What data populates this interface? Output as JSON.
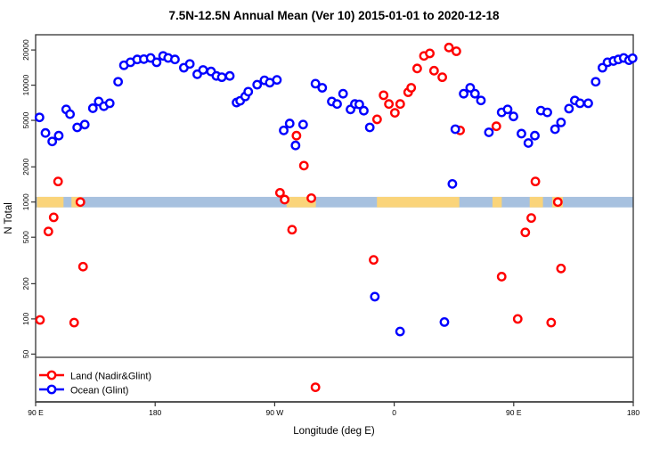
{
  "chart_data": {
    "type": "scatter",
    "title": "7.5N-12.5N Annual Mean (Ver 10)   2015-01-01 to 2020-12-18",
    "xlabel": "Longitude (deg E)",
    "ylabel": "N Total",
    "grid": false,
    "x_axis": {
      "span_deg": 450,
      "note": "longitude axis starts at 90E and wraps eastward 450 degrees",
      "ticks": [
        {
          "pos_deg": 0,
          "label": "90 E"
        },
        {
          "pos_deg": 90,
          "label": "180"
        },
        {
          "pos_deg": 180,
          "label": "90 W"
        },
        {
          "pos_deg": 270,
          "label": "0"
        },
        {
          "pos_deg": 360,
          "label": "90 E"
        },
        {
          "pos_deg": 450,
          "label": "180"
        }
      ]
    },
    "y_axis": {
      "scale": "log",
      "min": 19.5,
      "max": 27000,
      "ticks": [
        50,
        100,
        200,
        500,
        1000,
        2000,
        5000,
        10000,
        20000
      ]
    },
    "land_ocean_band": {
      "value": 1000,
      "ocean_color": "#a7c1df",
      "land_color": "#fad47a",
      "land_segments_deg": [
        [
          1,
          21
        ],
        [
          27,
          35
        ],
        [
          189,
          211
        ],
        [
          257,
          319
        ],
        [
          344,
          351
        ],
        [
          372,
          382
        ],
        [
          389,
          397
        ]
      ]
    },
    "legend": {
      "position": "bottom-left",
      "items": [
        "Land (Nadir&Glint)",
        "Ocean (Glint)"
      ]
    },
    "series": [
      {
        "name": "Land (Nadir&Glint)",
        "color": "#ff0000",
        "points": [
          [
            3.3,
            98
          ],
          [
            9.6,
            560
          ],
          [
            13.6,
            740
          ],
          [
            16.9,
            1500
          ],
          [
            29,
            93
          ],
          [
            33.7,
            1000
          ],
          [
            35.7,
            280
          ],
          [
            184,
            1200
          ],
          [
            187.5,
            1050
          ],
          [
            193.1,
            580
          ],
          [
            196.4,
            3700
          ],
          [
            202,
            2050
          ],
          [
            207.6,
            1080
          ],
          [
            210.7,
            26
          ],
          [
            254.5,
            320
          ],
          [
            257.1,
            5100
          ],
          [
            262,
            8200
          ],
          [
            266,
            6900
          ],
          [
            270.5,
            5800
          ],
          [
            274.5,
            6900
          ],
          [
            280.5,
            8700
          ],
          [
            282.8,
            9500
          ],
          [
            287.3,
            13900
          ],
          [
            292.4,
            17800
          ],
          [
            296.8,
            18700
          ],
          [
            300,
            13300
          ],
          [
            306.2,
            11700
          ],
          [
            311.2,
            21000
          ],
          [
            316.8,
            19500
          ],
          [
            319.6,
            4100
          ],
          [
            346.9,
            4450
          ],
          [
            350.9,
            230
          ],
          [
            363,
            100
          ],
          [
            368.7,
            550
          ],
          [
            373.2,
            730
          ],
          [
            376.3,
            1500
          ],
          [
            388.2,
            93
          ],
          [
            393.2,
            1000
          ],
          [
            395.6,
            270
          ]
        ]
      },
      {
        "name": "Ocean (Glint)",
        "color": "#0000ff",
        "points": [
          [
            2.9,
            5300
          ],
          [
            7.4,
            3900
          ],
          [
            12.5,
            3300
          ],
          [
            17.4,
            3700
          ],
          [
            23,
            6200
          ],
          [
            25.9,
            5650
          ],
          [
            31.3,
            4350
          ],
          [
            37,
            4600
          ],
          [
            43.1,
            6350
          ],
          [
            47.5,
            7250
          ],
          [
            51.4,
            6600
          ],
          [
            55.8,
            7000
          ],
          [
            62.1,
            10700
          ],
          [
            66.5,
            14800
          ],
          [
            71.4,
            15700
          ],
          [
            76.5,
            16600
          ],
          [
            81.5,
            16700
          ],
          [
            86.6,
            17100
          ],
          [
            91.1,
            15700
          ],
          [
            96,
            17800
          ],
          [
            99.8,
            17100
          ],
          [
            104.9,
            16600
          ],
          [
            111.6,
            14100
          ],
          [
            116.1,
            15200
          ],
          [
            121.7,
            12400
          ],
          [
            126.1,
            13500
          ],
          [
            132.1,
            13100
          ],
          [
            136.1,
            12000
          ],
          [
            140.2,
            11700
          ],
          [
            146.2,
            12000
          ],
          [
            151.3,
            7100
          ],
          [
            154,
            7350
          ],
          [
            157.8,
            8000
          ],
          [
            160.1,
            8800
          ],
          [
            166.8,
            10100
          ],
          [
            172.3,
            11000
          ],
          [
            176.3,
            10500
          ],
          [
            181.7,
            11100
          ],
          [
            186.8,
            4100
          ],
          [
            191.3,
            4700
          ],
          [
            195.7,
            3050
          ],
          [
            201.4,
            4600
          ],
          [
            210.7,
            10300
          ],
          [
            215.8,
            9500
          ],
          [
            223,
            7250
          ],
          [
            227,
            6900
          ],
          [
            231.5,
            8450
          ],
          [
            237.1,
            6200
          ],
          [
            240.4,
            6900
          ],
          [
            243.7,
            6850
          ],
          [
            247.1,
            6050
          ],
          [
            251.6,
            4350
          ],
          [
            255.4,
            155
          ],
          [
            274.4,
            78
          ],
          [
            307.8,
            94
          ],
          [
            313.8,
            1430
          ],
          [
            316,
            4200
          ],
          [
            322.3,
            8450
          ],
          [
            327.2,
            9500
          ],
          [
            330.8,
            8450
          ],
          [
            335.3,
            7400
          ],
          [
            341.3,
            3950
          ],
          [
            350.9,
            5850
          ],
          [
            355.4,
            6200
          ],
          [
            359.8,
            5400
          ],
          [
            365.8,
            3850
          ],
          [
            371,
            3200
          ],
          [
            375.9,
            3700
          ],
          [
            380.4,
            6060
          ],
          [
            385.3,
            5850
          ],
          [
            391.1,
            4200
          ],
          [
            395.6,
            4800
          ],
          [
            401.6,
            6300
          ],
          [
            406,
            7400
          ],
          [
            409.9,
            7000
          ],
          [
            416.1,
            7000
          ],
          [
            421.7,
            10700
          ],
          [
            426.8,
            14100
          ],
          [
            430.6,
            15700
          ],
          [
            435.1,
            16100
          ],
          [
            438.8,
            16600
          ],
          [
            442.8,
            17100
          ],
          [
            446.8,
            16350
          ],
          [
            449.5,
            17000
          ]
        ]
      }
    ]
  }
}
